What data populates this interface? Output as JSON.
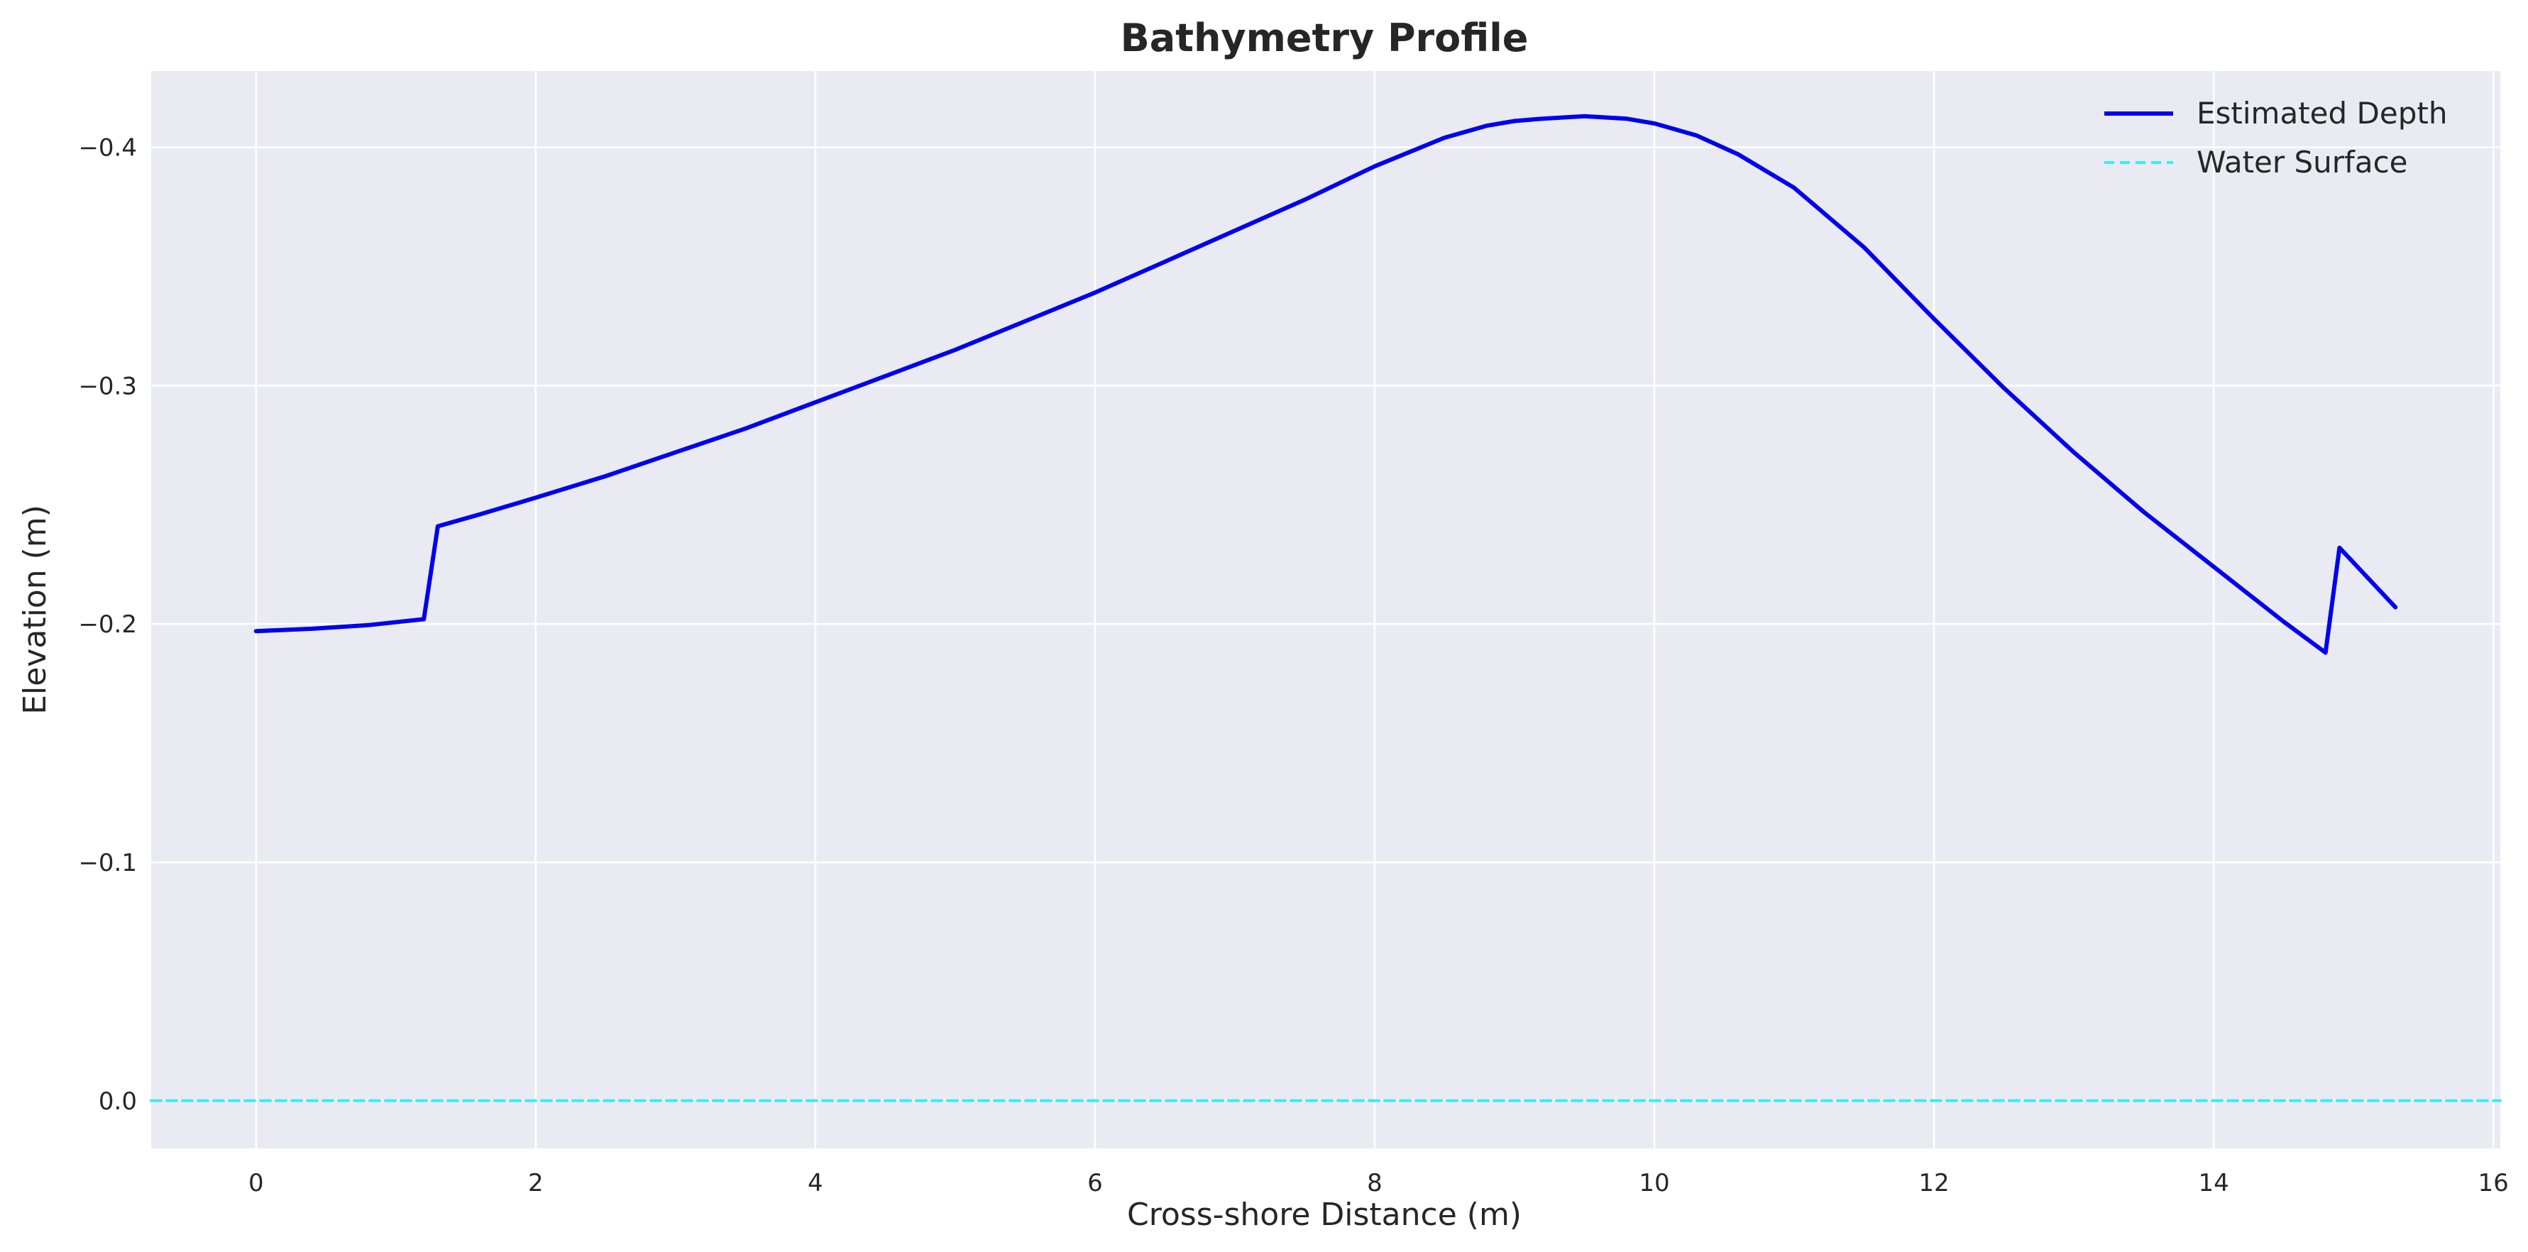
{
  "chart_data": {
    "type": "line",
    "title": "Bathymetry Profile",
    "xlabel": "Cross-shore Distance (m)",
    "ylabel": "Elevation (m)",
    "xlim": [
      -0.75,
      16.05
    ],
    "ylim": [
      0.02,
      -0.432
    ],
    "y_inverted": true,
    "grid": true,
    "legend_position": "top-right",
    "x_ticks": [
      0,
      2,
      4,
      6,
      8,
      10,
      12,
      14,
      16
    ],
    "x_tick_labels": [
      "0",
      "2",
      "4",
      "6",
      "8",
      "10",
      "12",
      "14",
      "16"
    ],
    "y_ticks": [
      -0.4,
      -0.3,
      -0.2,
      -0.1,
      0.0
    ],
    "y_tick_labels": [
      "−0.4",
      "−0.3",
      "−0.2",
      "−0.1",
      "0.0"
    ],
    "colors": {
      "background": "#eaeaf2",
      "grid": "#ffffff",
      "depth": "#0000ee",
      "water": "#33eeff"
    },
    "series": [
      {
        "name": "Estimated Depth",
        "style": "solid",
        "x": [
          0,
          0.4,
          0.8,
          1.2,
          1.3,
          1.6,
          2.0,
          2.5,
          3.0,
          3.5,
          4.0,
          4.5,
          5.0,
          5.5,
          6.0,
          6.5,
          7.0,
          7.5,
          8.0,
          8.5,
          8.8,
          9.0,
          9.2,
          9.5,
          9.8,
          10.0,
          10.3,
          10.6,
          11.0,
          11.5,
          12.0,
          12.5,
          13.0,
          13.5,
          14.0,
          14.5,
          14.8,
          14.9,
          15.3
        ],
        "y": [
          -0.197,
          -0.198,
          -0.1995,
          -0.202,
          -0.241,
          -0.246,
          -0.253,
          -0.262,
          -0.272,
          -0.282,
          -0.293,
          -0.304,
          -0.315,
          -0.327,
          -0.339,
          -0.352,
          -0.365,
          -0.378,
          -0.392,
          -0.404,
          -0.409,
          -0.411,
          -0.412,
          -0.413,
          -0.412,
          -0.41,
          -0.405,
          -0.397,
          -0.383,
          -0.358,
          -0.328,
          -0.299,
          -0.272,
          -0.247,
          -0.224,
          -0.201,
          -0.188,
          -0.232,
          -0.207
        ]
      },
      {
        "name": "Water Surface",
        "style": "dashed",
        "x": [
          -0.75,
          16.05
        ],
        "y": [
          0.0,
          0.0
        ]
      }
    ]
  }
}
